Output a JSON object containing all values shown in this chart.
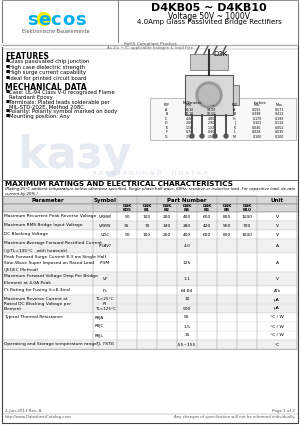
{
  "title": "D4KB05 ~ D4KB10",
  "subtitle1": "Voltage 50V ~ 1000V",
  "subtitle2": "4.0Amp Glass Passivited Bridge Rectifiers",
  "company_sub": "Elektronische Bauelemente",
  "rohs_line1": "RoHS Compliant Product",
  "rohs_line2": "Au-Eu + IC applicable halogen & lead free",
  "features_title": "FEATURES",
  "features": [
    "Glass passivated chip junction",
    "High case dielectric strength",
    "High surge current capability",
    "Ideal for printed circuit board"
  ],
  "mech_title": "MECHANICAL DATA",
  "mech": [
    "Case: UL-94 Class V-0 recognized Flame Retardant Epoxy",
    "Terminals: Plated leads solderable per MIL-STD-202E, Method 208C",
    "Polarity: Polarity symbol marked on body",
    "Mounting position: Any"
  ],
  "max_title": "MAXIMUM RATINGS AND ELECTRICAL CHARACTERISTICS",
  "max_note": "(Rating 25°C ambient temperature unless otherwise specified. Single phase half wave, 60Hz, resistive or inductive load. For capacitive load, de-rate current by 20%.)",
  "col_headers": [
    "Parameter",
    "Symbol",
    "D4K\nB05",
    "D4K\nB1",
    "D4K\nB2",
    "D4K\nB4",
    "D4K\nB6",
    "D4K\nB8",
    "D4K\nB10",
    "Unit"
  ],
  "part_number": "Part Number",
  "table_rows": [
    {
      "param": "Maximum Recurrent Peak Reverse Voltage",
      "symbol": "VRRM",
      "vals": [
        "50",
        "100",
        "200",
        "400",
        "600",
        "800",
        "1000"
      ],
      "unit": "V",
      "span": false
    },
    {
      "param": "Maximum RMS Bridge Input Voltage",
      "symbol": "VRMS",
      "vals": [
        "35",
        "70",
        "140",
        "280",
        "420",
        "560",
        "700"
      ],
      "unit": "V",
      "span": false
    },
    {
      "param": "DC Blocking Voltage",
      "symbol": "VDC",
      "vals": [
        "50",
        "100",
        "200",
        "400",
        "600",
        "800",
        "1000"
      ],
      "unit": "V",
      "span": false
    },
    {
      "param": "Maximum Average Forward Rectified Current\n(@TL=135°C   with heatsink)",
      "symbol": "IF(AV)",
      "vals": [
        "",
        "",
        "",
        "4.0",
        "",
        "",
        ""
      ],
      "unit": "A",
      "span": false
    },
    {
      "param": "Peak Forward Surge Current 8.3 ms Single Half\nSine-Wave Super Imposed on Rated Load\n(JEDEC Method)",
      "symbol": "IFSM",
      "vals": [
        "",
        "",
        "",
        "125",
        "",
        "",
        ""
      ],
      "unit": "A",
      "span": false
    },
    {
      "param": "Maximum Forward Voltage Drop Per Bridge\nElement at 4.0A Peak",
      "symbol": "VF",
      "vals": [
        "",
        "",
        "",
        "1.1",
        "",
        "",
        ""
      ],
      "unit": "V",
      "span": false
    },
    {
      "param": "I²t Rating for Fusing (t<8.3ms)",
      "symbol": "I²t",
      "vals": [
        "",
        "",
        "",
        "64.84",
        "",
        "",
        ""
      ],
      "unit": "A²s",
      "span": false
    },
    {
      "param": "Maximum Reverse Current at\nRated DC Blocking Voltage per\nElement",
      "symbol": "IR",
      "symbol_rows": [
        "TL=25°C",
        "TL=125°C"
      ],
      "vals_rows": [
        [
          "",
          "",
          "",
          "10",
          "",
          "",
          ""
        ],
        [
          "",
          "",
          "",
          "500",
          "",
          "",
          ""
        ]
      ],
      "units": [
        "μA",
        "μA"
      ],
      "span": true
    },
    {
      "param": "Typical Thermal Resistance",
      "symbol": "",
      "symbol_rows": [
        "RθJA",
        "RθJC",
        "RθJL"
      ],
      "vals_rows": [
        [
          "",
          "",
          "",
          "55",
          "",
          "",
          ""
        ],
        [
          "",
          "",
          "",
          "1.5",
          "",
          "",
          ""
        ],
        [
          "",
          "",
          "",
          "15",
          "",
          "",
          ""
        ]
      ],
      "units": [
        "°C / W",
        "°C / W",
        "°C / W"
      ],
      "span": true
    },
    {
      "param": "Operating and Storage temperature range",
      "symbol": "TJ, TSTG",
      "vals": [
        "",
        "",
        "",
        "-55~155",
        "",
        "",
        ""
      ],
      "unit": "°C",
      "span": false
    }
  ],
  "bg_color": "#ffffff",
  "secos_blue": "#00AEEF",
  "secos_yellow": "#FFF200",
  "date_text": "2-Jun-2011 Rev. A",
  "page_text": "Page 1 of 2",
  "footer_left": "http://www.DatasheetCatalog.com",
  "footer_right": "Any changes of specification will not be informed individually.",
  "watermark_text": "Э Л Е К Т Р О Н Н Ы Й     П О Р Т А Л",
  "kazу_text": "kaзу"
}
